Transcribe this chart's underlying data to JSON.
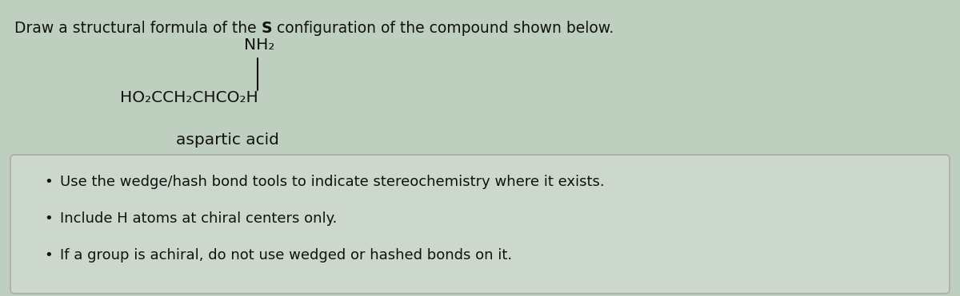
{
  "title_part1": "Draw a structural formula of the ",
  "title_bold_s": "S",
  "title_part2": " configuration of the compound shown below.",
  "nh2_label": "NH₂",
  "formula_label": "HO₂CCH₂CHCO₂H",
  "compound_name": "aspartic acid",
  "bullet_points": [
    "Use the wedge/hash bond tools to indicate stereochemistry where it exists.",
    "Include H atoms at chiral centers only.",
    "If a group is achiral, do not use wedged or hashed bonds on it."
  ],
  "bg_color": "#bfcfbf",
  "box_bg_color": "#ccd8cc",
  "box_edge_color": "#aaaaaa",
  "text_color": "#111111",
  "fig_width": 12.0,
  "fig_height": 3.71,
  "title_fontsize": 13.5,
  "formula_fontsize": 14.5,
  "bullet_fontsize": 13.0
}
